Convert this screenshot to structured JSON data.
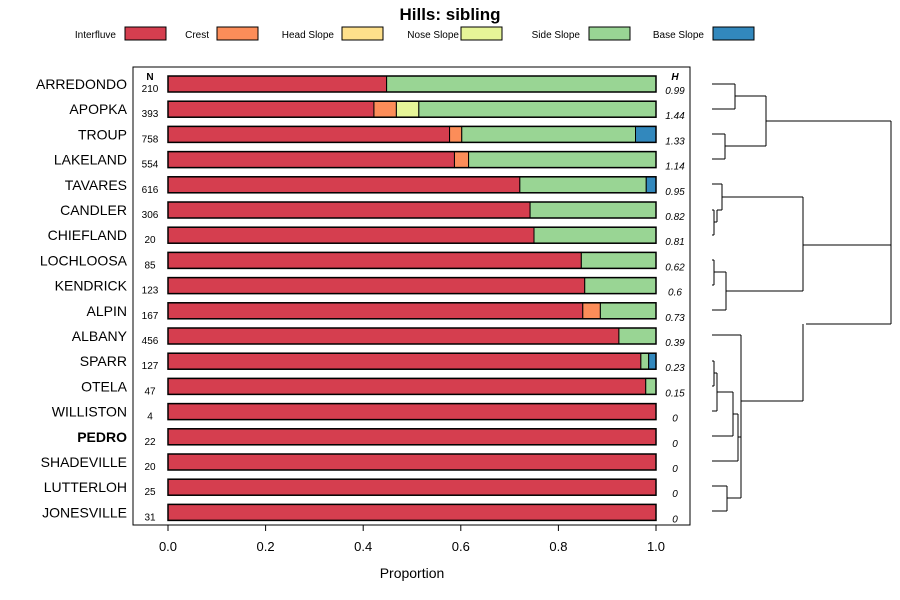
{
  "chart_data": {
    "type": "bar",
    "orientation": "horizontal",
    "stacked": true,
    "title": "Hills: sibling",
    "xlabel": "Proportion",
    "ylabel": "",
    "xlim": [
      0,
      1
    ],
    "x_ticks": [
      "0.0",
      "0.2",
      "0.4",
      "0.6",
      "0.8",
      "1.0"
    ],
    "x_tick_values": [
      0,
      0.2,
      0.4,
      0.6,
      0.8,
      1.0
    ],
    "n_header": "N",
    "h_header": "H",
    "legend": [
      {
        "name": "Interfluve",
        "color": "#d53e4f"
      },
      {
        "name": "Crest",
        "color": "#fc8d59"
      },
      {
        "name": "Head Slope",
        "color": "#fee08b"
      },
      {
        "name": "Nose Slope",
        "color": "#e6f598"
      },
      {
        "name": "Side Slope",
        "color": "#99d594"
      },
      {
        "name": "Base Slope",
        "color": "#3288bd"
      }
    ],
    "rows": [
      {
        "label": "ARREDONDO",
        "n": "210",
        "h": "0.99",
        "bold": false,
        "values": [
          0.448,
          0,
          0,
          0,
          0.552,
          0
        ]
      },
      {
        "label": "APOPKA",
        "n": "393",
        "h": "1.44",
        "bold": false,
        "values": [
          0.422,
          0.046,
          0,
          0.046,
          0.486,
          0
        ]
      },
      {
        "label": "TROUP",
        "n": "758",
        "h": "1.33",
        "bold": false,
        "values": [
          0.577,
          0.025,
          0,
          0,
          0.356,
          0.042
        ]
      },
      {
        "label": "LAKELAND",
        "n": "554",
        "h": "1.14",
        "bold": false,
        "values": [
          0.587,
          0.029,
          0,
          0,
          0.384,
          0
        ]
      },
      {
        "label": "TAVARES",
        "n": "616",
        "h": "0.95",
        "bold": false,
        "values": [
          0.721,
          0,
          0,
          0,
          0.259,
          0.02
        ]
      },
      {
        "label": "CANDLER",
        "n": "306",
        "h": "0.82",
        "bold": false,
        "values": [
          0.742,
          0,
          0,
          0,
          0.258,
          0
        ]
      },
      {
        "label": "CHIEFLAND",
        "n": "20",
        "h": "0.81",
        "bold": false,
        "values": [
          0.75,
          0,
          0,
          0,
          0.25,
          0
        ]
      },
      {
        "label": "LOCHLOOSA",
        "n": "85",
        "h": "0.62",
        "bold": false,
        "values": [
          0.847,
          0,
          0,
          0,
          0.153,
          0
        ]
      },
      {
        "label": "KENDRICK",
        "n": "123",
        "h": "0.6",
        "bold": false,
        "values": [
          0.854,
          0,
          0,
          0,
          0.146,
          0
        ]
      },
      {
        "label": "ALPIN",
        "n": "167",
        "h": "0.73",
        "bold": false,
        "values": [
          0.85,
          0.036,
          0,
          0,
          0.114,
          0
        ]
      },
      {
        "label": "ALBANY",
        "n": "456",
        "h": "0.39",
        "bold": false,
        "values": [
          0.924,
          0,
          0,
          0,
          0.076,
          0
        ]
      },
      {
        "label": "SPARR",
        "n": "127",
        "h": "0.23",
        "bold": false,
        "values": [
          0.969,
          0,
          0,
          0,
          0.016,
          0.015
        ]
      },
      {
        "label": "OTELA",
        "n": "47",
        "h": "0.15",
        "bold": false,
        "values": [
          0.979,
          0,
          0,
          0,
          0.021,
          0
        ]
      },
      {
        "label": "WILLISTON",
        "n": "4",
        "h": "0",
        "bold": false,
        "values": [
          1,
          0,
          0,
          0,
          0,
          0
        ]
      },
      {
        "label": "PEDRO",
        "n": "22",
        "h": "0",
        "bold": true,
        "values": [
          1,
          0,
          0,
          0,
          0,
          0
        ]
      },
      {
        "label": "SHADEVILLE",
        "n": "20",
        "h": "0",
        "bold": false,
        "values": [
          1,
          0,
          0,
          0,
          0,
          0
        ]
      },
      {
        "label": "LUTTERLOH",
        "n": "25",
        "h": "0",
        "bold": false,
        "values": [
          1,
          0,
          0,
          0,
          0,
          0
        ]
      },
      {
        "label": "JONESVILLE",
        "n": "31",
        "h": "0",
        "bold": false,
        "values": [
          1,
          0,
          0,
          0,
          0,
          0
        ]
      }
    ]
  }
}
